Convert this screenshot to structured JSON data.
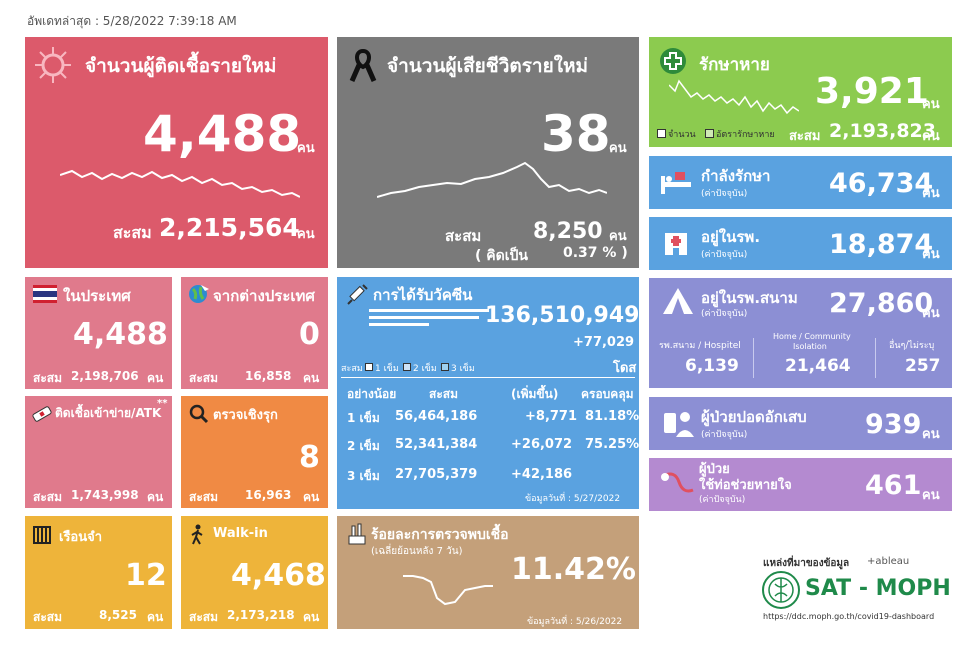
{
  "updated": "อัพเดทล่าสุด : 5/28/2022 7:39:18 AM",
  "unit": "คน",
  "acc_label": "สะสม",
  "new_cases": {
    "title": "จำนวนผู้ติดเชื้อรายใหม่",
    "value": "4,488",
    "acc": "2,215,564"
  },
  "deaths": {
    "title": "จำนวนผู้เสียชีวิตรายใหม่",
    "value": "38",
    "acc": "8,250",
    "pct_label": "( คิดเป็น",
    "pct": "0.37 % )"
  },
  "recovered": {
    "title": "รักษาหาย",
    "value": "3,921",
    "acc": "2,193,823",
    "legend1": "จำนวน",
    "legend2": "อัตรารักษาหาย"
  },
  "treating": {
    "title": "กำลังรักษา",
    "sub": "(ค่าปัจจุบัน)",
    "value": "46,734"
  },
  "hospital": {
    "title": "อยู่ในรพ.",
    "sub": "(ค่าปัจจุบัน)",
    "value": "18,874"
  },
  "field": {
    "title": "อยู่ในรพ.สนาม",
    "sub": "(ค่าปัจจุบัน)",
    "value": "27,860",
    "c1_label": "รพ.สนาม / Hospitel",
    "c1": "6,139",
    "c2_label1": "Home / Community",
    "c2_label2": "Isolation",
    "c2": "21,464",
    "c3_label": "อื่นๆ/ไม่ระบุ",
    "c3": "257"
  },
  "pneumonia": {
    "title": "ผู้ป่วยปอดอักเสบ",
    "sub": "(ค่าปัจจุบัน)",
    "value": "939"
  },
  "ventilator": {
    "title1": "ผู้ป่วย",
    "title2": "ใช้ท่อช่วยหายใจ",
    "sub": "(ค่าปัจจุบัน)",
    "value": "461"
  },
  "domestic": {
    "title": "ในประเทศ",
    "value": "4,488",
    "acc": "2,198,706"
  },
  "foreign": {
    "title": "จากต่างประเทศ",
    "value": "0",
    "acc": "16,858"
  },
  "atk": {
    "title": "ติดเชื้อเข้าข่าย/ATK",
    "stars": "**",
    "acc": "1,743,998"
  },
  "proactive": {
    "title": "ตรวจเชิงรุก",
    "value": "8",
    "acc": "16,963"
  },
  "prison": {
    "title": "เรือนจำ",
    "value": "12",
    "acc": "8,525"
  },
  "walkin": {
    "title": "Walk-in",
    "value": "4,468",
    "acc": "2,173,218"
  },
  "vaccine": {
    "title": "การได้รับวัคซีน",
    "total": "136,510,949",
    "inc": "+77,029",
    "dose_unit": "โดส",
    "legend_acc": "สะสม",
    "legend": [
      "1 เข็ม",
      "2 เข็ม",
      "3 เข็ม"
    ],
    "headers": [
      "อย่างน้อย",
      "สะสม",
      "(เพิ่มขึ้น)",
      "ครอบคลุม"
    ],
    "rows": [
      [
        "1 เข็ม",
        "56,464,186",
        "+8,771",
        "81.18%"
      ],
      [
        "2 เข็ม",
        "52,341,384",
        "+26,072",
        "75.25%"
      ],
      [
        "3 เข็ม",
        "27,705,379",
        "+42,186",
        ""
      ]
    ],
    "date": "ข้อมูลวันที่ : 5/27/2022"
  },
  "positivity": {
    "title": "ร้อยละการตรวจพบเชื้อ",
    "sub": "(เฉลี่ยย้อนหลัง 7 วัน)",
    "value": "11.42%",
    "date": "ข้อมูลวันที่ : 5/26/2022"
  },
  "source": {
    "label": "แหล่งที่มาของข้อมูล",
    "tableau": "+ableau",
    "brand": "SAT - MOPH",
    "url": "https://ddc.moph.go.th/covid19-dashboard"
  },
  "colors": {
    "pink": "#dc5a6b",
    "grey": "#7a7a7a",
    "green": "#8ccb4f",
    "blue": "#5aa2e0",
    "orange": "#f08a44",
    "yellow": "#eeb43a",
    "tan": "#c4a07a",
    "purple": "#8c8fd4",
    "brand_green": "#1f8a4a"
  }
}
